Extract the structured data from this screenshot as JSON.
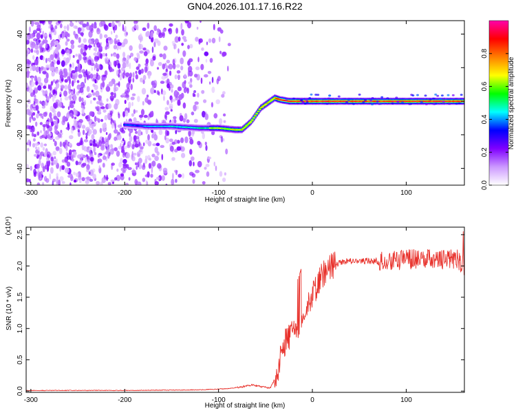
{
  "title": "GN04.2026.101.17.16.R22",
  "chart_data": [
    {
      "type": "heatmap",
      "title": "GN04.2026.101.17.16.R22",
      "xlabel": "Height of straight line (km)",
      "ylabel": "Frequency (Hz)",
      "xlim": [
        -305,
        162
      ],
      "ylim": [
        -50,
        48
      ],
      "xticks": [
        -300,
        -200,
        -100,
        0,
        100
      ],
      "yticks": [
        -40,
        -20,
        0,
        20,
        40
      ],
      "ridge": {
        "x": [
          -200,
          -175,
          -150,
          -120,
          -100,
          -82,
          -75,
          -65,
          -55,
          -45,
          -40,
          -35,
          -25,
          0,
          50,
          100,
          140,
          162
        ],
        "y": [
          -14,
          -15,
          -15,
          -16,
          -16,
          -17,
          -17,
          -12,
          -4,
          0,
          2,
          1,
          0,
          0,
          0,
          0,
          0,
          0
        ]
      },
      "colorbar": {
        "label": "Normalized spectral amplitude",
        "range": [
          0,
          1
        ],
        "ticks": [
          0.0,
          0.2,
          0.4,
          0.6,
          0.8
        ],
        "colors": [
          "#ffffff",
          "#cc99ff",
          "#8000ff",
          "#0000ff",
          "#00ffff",
          "#00ff00",
          "#ffff00",
          "#ff8000",
          "#ff0000",
          "#ff00aa"
        ]
      },
      "grid": false
    },
    {
      "type": "line",
      "xlabel": "Height of straight line (km)",
      "ylabel": "SNR (10 * v/v)",
      "y_multiplier": "(x10⁴)",
      "xlim": [
        -305,
        162
      ],
      "ylim": [
        -0.02,
        2.62
      ],
      "xticks": [
        -300,
        -200,
        -100,
        0,
        100
      ],
      "yticks": [
        0.0,
        0.5,
        1.0,
        1.5,
        2.0,
        2.5
      ],
      "series": [
        {
          "color": "#e8302a",
          "x": [
            -305,
            -200,
            -120,
            -90,
            -75,
            -65,
            -55,
            -45,
            -38,
            -33,
            -28,
            -20,
            -15,
            -10,
            -5,
            0,
            5,
            10,
            20,
            30,
            40,
            60,
            80,
            100,
            120,
            140,
            155,
            162
          ],
          "y": [
            0.01,
            0.01,
            0.02,
            0.04,
            0.07,
            0.1,
            0.07,
            0.05,
            0.25,
            0.65,
            0.8,
            0.95,
            1.05,
            1.3,
            1.4,
            1.55,
            1.7,
            1.85,
            1.98,
            2.05,
            2.08,
            2.08,
            2.08,
            2.1,
            2.12,
            2.1,
            2.1,
            2.0
          ]
        }
      ],
      "grid": false
    }
  ]
}
